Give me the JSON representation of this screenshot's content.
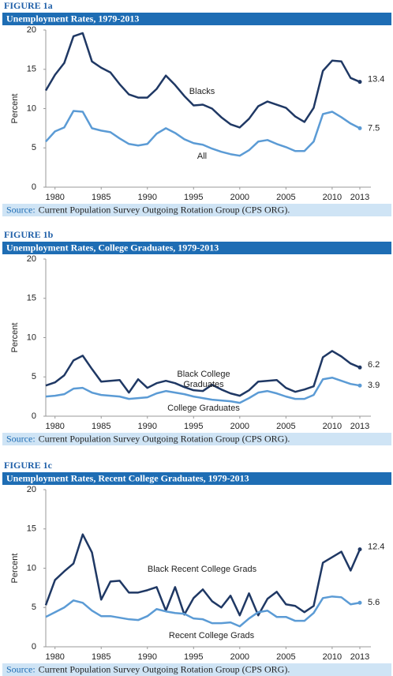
{
  "chart_data": [
    {
      "type": "line",
      "figure": "FIGURE 1a",
      "title": "Unemployment Rates, 1979-2013",
      "ylabel": "Percent",
      "source_label": "Source:",
      "source": "Current Population Survey Outgoing Rotation Group (CPS ORG).",
      "x": [
        1979,
        1980,
        1981,
        1982,
        1983,
        1984,
        1985,
        1986,
        1987,
        1988,
        1989,
        1990,
        1991,
        1992,
        1993,
        1994,
        1995,
        1996,
        1997,
        1998,
        1999,
        2000,
        2001,
        2002,
        2003,
        2004,
        2005,
        2006,
        2007,
        2008,
        2009,
        2010,
        2011,
        2012,
        2013
      ],
      "xlim": [
        1979,
        2013
      ],
      "xticks": [
        1980,
        1985,
        1990,
        1995,
        2000,
        2005,
        2010,
        2013
      ],
      "ylim": [
        0,
        20
      ],
      "yticks": [
        0,
        5,
        10,
        15,
        20
      ],
      "grid": false,
      "series": [
        {
          "name": "Blacks",
          "color": "#1f3864",
          "values": [
            12.3,
            14.3,
            15.8,
            19.2,
            19.6,
            16.0,
            15.2,
            14.6,
            13.1,
            11.8,
            11.4,
            11.4,
            12.5,
            14.2,
            13.0,
            11.6,
            10.4,
            10.5,
            10.0,
            8.9,
            8.0,
            7.6,
            8.7,
            10.3,
            10.9,
            10.5,
            10.1,
            9.0,
            8.3,
            10.1,
            14.8,
            16.1,
            16.0,
            13.9,
            13.4
          ]
        },
        {
          "name": "All",
          "color": "#5b9bd5",
          "values": [
            5.8,
            7.1,
            7.6,
            9.7,
            9.6,
            7.5,
            7.2,
            7.0,
            6.2,
            5.5,
            5.3,
            5.5,
            6.8,
            7.5,
            6.9,
            6.1,
            5.6,
            5.4,
            4.9,
            4.5,
            4.2,
            4.0,
            4.7,
            5.8,
            6.0,
            5.5,
            5.1,
            4.6,
            4.6,
            5.8,
            9.3,
            9.6,
            8.9,
            8.1,
            7.5
          ]
        }
      ]
    },
    {
      "type": "line",
      "figure": "FIGURE 1b",
      "title": "Unemployment Rates, College Graduates, 1979-2013",
      "ylabel": "Percent",
      "source_label": "Source:",
      "source": "Current Population Survey Outgoing Rotation Group (CPS ORG).",
      "x": [
        1979,
        1980,
        1981,
        1982,
        1983,
        1984,
        1985,
        1986,
        1987,
        1988,
        1989,
        1990,
        1991,
        1992,
        1993,
        1994,
        1995,
        1996,
        1997,
        1998,
        1999,
        2000,
        2001,
        2002,
        2003,
        2004,
        2005,
        2006,
        2007,
        2008,
        2009,
        2010,
        2011,
        2012,
        2013
      ],
      "xlim": [
        1979,
        2013
      ],
      "xticks": [
        1980,
        1985,
        1990,
        1995,
        2000,
        2005,
        2010,
        2013
      ],
      "ylim": [
        0,
        20
      ],
      "yticks": [
        0,
        5,
        10,
        15,
        20
      ],
      "grid": false,
      "series": [
        {
          "name": "Black College Graduates",
          "color": "#1f3864",
          "values": [
            3.9,
            4.3,
            5.2,
            7.1,
            7.7,
            6.0,
            4.4,
            4.5,
            4.6,
            3.0,
            4.7,
            3.6,
            4.2,
            4.5,
            4.2,
            3.7,
            3.3,
            3.2,
            4.0,
            3.4,
            2.9,
            2.6,
            3.3,
            4.4,
            4.5,
            4.6,
            3.6,
            3.1,
            3.4,
            3.8,
            7.5,
            8.3,
            7.6,
            6.7,
            6.2
          ]
        },
        {
          "name": "College Graduates",
          "color": "#5b9bd5",
          "values": [
            2.5,
            2.6,
            2.8,
            3.5,
            3.6,
            3.0,
            2.7,
            2.6,
            2.5,
            2.2,
            2.3,
            2.4,
            2.9,
            3.2,
            3.0,
            2.8,
            2.5,
            2.3,
            2.1,
            2.0,
            1.9,
            1.7,
            2.3,
            3.0,
            3.2,
            2.9,
            2.5,
            2.2,
            2.2,
            2.7,
            4.7,
            4.9,
            4.5,
            4.1,
            3.9
          ]
        }
      ]
    },
    {
      "type": "line",
      "figure": "FIGURE 1c",
      "title": "Unemployment Rates, Recent College Graduates, 1979-2013",
      "ylabel": "Percent",
      "source_label": "Source:",
      "source": "Current Population Survey Outgoing Rotation Group (CPS ORG).",
      "x": [
        1979,
        1980,
        1981,
        1982,
        1983,
        1984,
        1985,
        1986,
        1987,
        1988,
        1989,
        1990,
        1991,
        1992,
        1993,
        1994,
        1995,
        1996,
        1997,
        1998,
        1999,
        2000,
        2001,
        2002,
        2003,
        2004,
        2005,
        2006,
        2007,
        2008,
        2009,
        2010,
        2011,
        2012,
        2013
      ],
      "xlim": [
        1979,
        2013
      ],
      "xticks": [
        1980,
        1985,
        1990,
        1995,
        2000,
        2005,
        2010,
        2013
      ],
      "ylim": [
        0,
        20
      ],
      "yticks": [
        0,
        5,
        10,
        15,
        20
      ],
      "grid": false,
      "series": [
        {
          "name": "Black Recent College Grads",
          "color": "#1f3864",
          "values": [
            5.3,
            8.5,
            9.6,
            10.6,
            14.3,
            12.0,
            6.0,
            8.3,
            8.4,
            6.9,
            6.9,
            7.2,
            7.6,
            4.6,
            7.6,
            4.1,
            6.2,
            7.3,
            5.8,
            5.0,
            6.5,
            4.0,
            6.8,
            4.0,
            6.1,
            7.0,
            5.4,
            5.2,
            4.4,
            5.2,
            10.7,
            11.4,
            12.1,
            9.7,
            12.4
          ]
        },
        {
          "name": "Recent College Grads",
          "color": "#5b9bd5",
          "values": [
            3.8,
            4.4,
            5.0,
            5.9,
            5.6,
            4.6,
            3.9,
            3.9,
            3.7,
            3.5,
            3.4,
            3.9,
            4.8,
            4.5,
            4.3,
            4.2,
            3.6,
            3.5,
            3.0,
            3.0,
            3.1,
            2.6,
            3.6,
            4.4,
            4.6,
            3.8,
            3.8,
            3.3,
            3.3,
            4.3,
            6.2,
            6.4,
            6.3,
            5.4,
            5.6
          ]
        }
      ]
    }
  ]
}
